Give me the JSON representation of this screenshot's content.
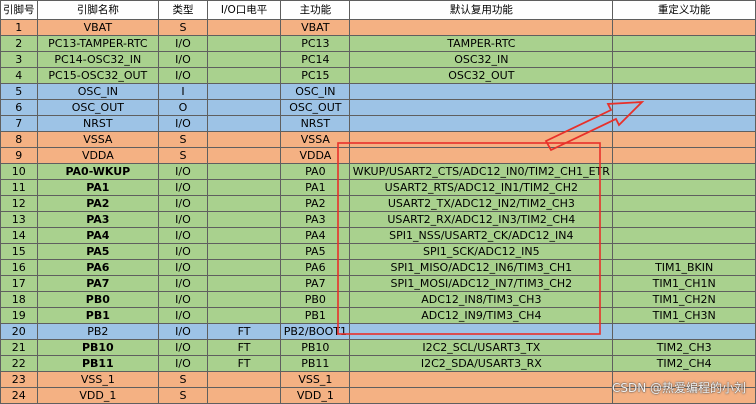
{
  "headers": {
    "pin": "引脚号",
    "name": "引脚名称",
    "type": "类型",
    "io_level": "I/O口电平",
    "main": "主功能",
    "default_alt": "默认复用功能",
    "remap": "重定义功能"
  },
  "rows": [
    {
      "pin": "1",
      "name": "VBAT",
      "type": "S",
      "io": "",
      "main": "VBAT",
      "alt": "",
      "remap": "",
      "kind": "power",
      "bold": false
    },
    {
      "pin": "2",
      "name": "PC13-TAMPER-RTC",
      "type": "I/O",
      "io": "",
      "main": "PC13",
      "alt": "TAMPER-RTC",
      "remap": "",
      "kind": "io",
      "bold": false
    },
    {
      "pin": "3",
      "name": "PC14-OSC32_IN",
      "type": "I/O",
      "io": "",
      "main": "PC14",
      "alt": "OSC32_IN",
      "remap": "",
      "kind": "io",
      "bold": false
    },
    {
      "pin": "4",
      "name": "PC15-OSC32_OUT",
      "type": "I/O",
      "io": "",
      "main": "PC15",
      "alt": "OSC32_OUT",
      "remap": "",
      "kind": "io",
      "bold": false
    },
    {
      "pin": "5",
      "name": "OSC_IN",
      "type": "I",
      "io": "",
      "main": "OSC_IN",
      "alt": "",
      "remap": "",
      "kind": "osc",
      "bold": false
    },
    {
      "pin": "6",
      "name": "OSC_OUT",
      "type": "O",
      "io": "",
      "main": "OSC_OUT",
      "alt": "",
      "remap": "",
      "kind": "osc",
      "bold": false
    },
    {
      "pin": "7",
      "name": "NRST",
      "type": "I/O",
      "io": "",
      "main": "NRST",
      "alt": "",
      "remap": "",
      "kind": "osc",
      "bold": false
    },
    {
      "pin": "8",
      "name": "VSSA",
      "type": "S",
      "io": "",
      "main": "VSSA",
      "alt": "",
      "remap": "",
      "kind": "power",
      "bold": false
    },
    {
      "pin": "9",
      "name": "VDDA",
      "type": "S",
      "io": "",
      "main": "VDDA",
      "alt": "",
      "remap": "",
      "kind": "power",
      "bold": false
    },
    {
      "pin": "10",
      "name": "PA0-WKUP",
      "type": "I/O",
      "io": "",
      "main": "PA0",
      "alt": "WKUP/USART2_CTS/ADC12_IN0/TIM2_CH1_ETR",
      "remap": "",
      "kind": "io",
      "bold": true
    },
    {
      "pin": "11",
      "name": "PA1",
      "type": "I/O",
      "io": "",
      "main": "PA1",
      "alt": "USART2_RTS/ADC12_IN1/TIM2_CH2",
      "remap": "",
      "kind": "io",
      "bold": true
    },
    {
      "pin": "12",
      "name": "PA2",
      "type": "I/O",
      "io": "",
      "main": "PA2",
      "alt": "USART2_TX/ADC12_IN2/TIM2_CH3",
      "remap": "",
      "kind": "io",
      "bold": true
    },
    {
      "pin": "13",
      "name": "PA3",
      "type": "I/O",
      "io": "",
      "main": "PA3",
      "alt": "USART2_RX/ADC12_IN3/TIM2_CH4",
      "remap": "",
      "kind": "io",
      "bold": true
    },
    {
      "pin": "14",
      "name": "PA4",
      "type": "I/O",
      "io": "",
      "main": "PA4",
      "alt": "SPI1_NSS/USART2_CK/ADC12_IN4",
      "remap": "",
      "kind": "io",
      "bold": true
    },
    {
      "pin": "15",
      "name": "PA5",
      "type": "I/O",
      "io": "",
      "main": "PA5",
      "alt": "SPI1_SCK/ADC12_IN5",
      "remap": "",
      "kind": "io",
      "bold": true
    },
    {
      "pin": "16",
      "name": "PA6",
      "type": "I/O",
      "io": "",
      "main": "PA6",
      "alt": "SPI1_MISO/ADC12_IN6/TIM3_CH1",
      "remap": "TIM1_BKIN",
      "kind": "io",
      "bold": true
    },
    {
      "pin": "17",
      "name": "PA7",
      "type": "I/O",
      "io": "",
      "main": "PA7",
      "alt": "SPI1_MOSI/ADC12_IN7/TIM3_CH2",
      "remap": "TIM1_CH1N",
      "kind": "io",
      "bold": true
    },
    {
      "pin": "18",
      "name": "PB0",
      "type": "I/O",
      "io": "",
      "main": "PB0",
      "alt": "ADC12_IN8/TIM3_CH3",
      "remap": "TIM1_CH2N",
      "kind": "io",
      "bold": true
    },
    {
      "pin": "19",
      "name": "PB1",
      "type": "I/O",
      "io": "",
      "main": "PB1",
      "alt": "ADC12_IN9/TIM3_CH4",
      "remap": "TIM1_CH3N",
      "kind": "io",
      "bold": true
    },
    {
      "pin": "20",
      "name": "PB2",
      "type": "I/O",
      "io": "FT",
      "main": "PB2/BOOT1",
      "alt": "",
      "remap": "",
      "kind": "osc",
      "bold": false
    },
    {
      "pin": "21",
      "name": "PB10",
      "type": "I/O",
      "io": "FT",
      "main": "PB10",
      "alt": "I2C2_SCL/USART3_TX",
      "remap": "TIM2_CH3",
      "kind": "io",
      "bold": true
    },
    {
      "pin": "22",
      "name": "PB11",
      "type": "I/O",
      "io": "FT",
      "main": "PB11",
      "alt": "I2C2_SDA/USART3_RX",
      "remap": "TIM2_CH4",
      "kind": "io",
      "bold": true
    },
    {
      "pin": "23",
      "name": "VSS_1",
      "type": "S",
      "io": "",
      "main": "VSS_1",
      "alt": "",
      "remap": "",
      "kind": "power",
      "bold": false
    },
    {
      "pin": "24",
      "name": "VDD_1",
      "type": "S",
      "io": "",
      "main": "VDD_1",
      "alt": "",
      "remap": "",
      "kind": "power",
      "bold": false
    }
  ],
  "colors": {
    "power": "#f4b183",
    "osc": "#9dc3e6",
    "io": "#a9d18e",
    "annotation": "#e8302a"
  },
  "watermark": "CSDN @热爱编程的小刘"
}
